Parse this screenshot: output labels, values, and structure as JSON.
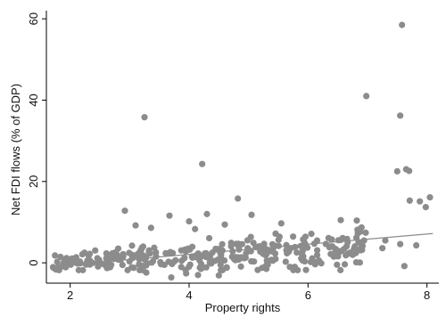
{
  "chart_data": {
    "type": "scatter",
    "title": "",
    "xlabel": "Property rights",
    "ylabel": "Net FDI flows (% of GDP)",
    "xlim": [
      1.6,
      8.2
    ],
    "ylim": [
      -5,
      62
    ],
    "xticks": [
      2,
      4,
      6,
      8
    ],
    "yticks": [
      0,
      20,
      40,
      60
    ],
    "grid": false,
    "legend": "none",
    "colors": {
      "points": "#8c8c8c",
      "fit_line": "#8c8c8c",
      "axis": "#000000"
    },
    "fit_line": {
      "x": [
        1.7,
        8.1
      ],
      "y": [
        -0.8,
        7.2
      ]
    },
    "outliers": [
      {
        "x": 7.58,
        "y": 58.5
      },
      {
        "x": 6.98,
        "y": 41.0
      },
      {
        "x": 7.55,
        "y": 36.2
      },
      {
        "x": 3.25,
        "y": 35.8
      },
      {
        "x": 4.22,
        "y": 24.3
      },
      {
        "x": 7.65,
        "y": 23.0
      },
      {
        "x": 7.7,
        "y": 22.6
      },
      {
        "x": 7.5,
        "y": 22.5
      },
      {
        "x": 8.05,
        "y": 16.1
      },
      {
        "x": 4.82,
        "y": 15.8
      },
      {
        "x": 7.71,
        "y": 15.3
      },
      {
        "x": 7.88,
        "y": 15.1
      },
      {
        "x": 7.98,
        "y": 13.7
      },
      {
        "x": 2.92,
        "y": 12.8
      },
      {
        "x": 4.3,
        "y": 12.0
      },
      {
        "x": 5.05,
        "y": 11.8
      },
      {
        "x": 3.67,
        "y": 11.6
      },
      {
        "x": 6.82,
        "y": 10.4
      },
      {
        "x": 6.55,
        "y": 10.5
      },
      {
        "x": 4.0,
        "y": 10.2
      },
      {
        "x": 5.55,
        "y": 9.7
      },
      {
        "x": 3.1,
        "y": 9.2
      },
      {
        "x": 4.6,
        "y": 9.4
      },
      {
        "x": 6.9,
        "y": 8.7
      },
      {
        "x": 3.36,
        "y": 8.6
      },
      {
        "x": 4.1,
        "y": 8.3
      },
      {
        "x": 6.97,
        "y": 7.4
      },
      {
        "x": 7.3,
        "y": 5.5
      },
      {
        "x": 7.55,
        "y": 4.6
      },
      {
        "x": 7.82,
        "y": 4.3
      },
      {
        "x": 7.25,
        "y": 3.6
      },
      {
        "x": 7.62,
        "y": -0.8
      },
      {
        "x": 3.7,
        "y": -3.6
      },
      {
        "x": 3.95,
        "y": -2.6
      },
      {
        "x": 4.15,
        "y": -3.0
      },
      {
        "x": 3.28,
        "y": -2.4
      },
      {
        "x": 4.5,
        "y": -3.1
      },
      {
        "x": 4.2,
        "y": -1.5
      }
    ],
    "cluster": {
      "x_range": [
        1.7,
        7.0
      ],
      "center_y_at_start": 0.0,
      "center_y_at_end": 3.5,
      "spread": 3.6,
      "count": 330
    }
  }
}
